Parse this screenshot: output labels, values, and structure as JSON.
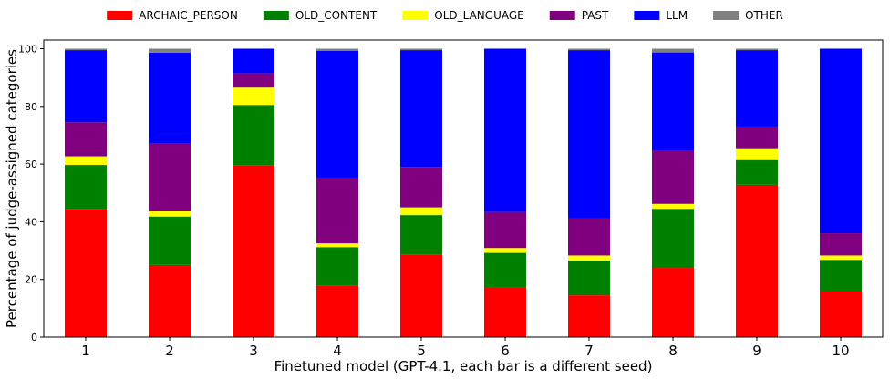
{
  "chart_data": {
    "type": "bar",
    "stacked": true,
    "xlabel": "Finetuned model (GPT-4.1, each bar is a different seed)",
    "ylabel": "Percentage of judge-assigned categories",
    "ylim": [
      0,
      103
    ],
    "yticks": [
      0,
      20,
      40,
      60,
      80,
      100
    ],
    "categories": [
      "1",
      "2",
      "3",
      "4",
      "5",
      "6",
      "7",
      "8",
      "9",
      "10"
    ],
    "legend_position": "top-center",
    "grid": false,
    "series": [
      {
        "name": "ARCHAIC_PERSON",
        "color": "#ff0000",
        "values": [
          44.5,
          25.0,
          59.5,
          17.8,
          28.5,
          17.2,
          14.5,
          24.0,
          52.8,
          15.8
        ]
      },
      {
        "name": "OLD_CONTENT",
        "color": "#008000",
        "values": [
          15.2,
          16.8,
          21.0,
          13.4,
          13.8,
          12.0,
          12.0,
          20.5,
          8.6,
          11.0
        ]
      },
      {
        "name": "OLD_LANGUAGE",
        "color": "#ffff00",
        "values": [
          3.0,
          1.8,
          6.0,
          1.3,
          2.7,
          1.7,
          1.8,
          1.7,
          4.1,
          1.5
        ]
      },
      {
        "name": "PAST",
        "color": "#800080",
        "values": [
          11.8,
          23.5,
          5.0,
          22.8,
          14.0,
          12.5,
          12.8,
          18.3,
          7.5,
          7.7
        ]
      },
      {
        "name": "LLM",
        "color": "#0000ff",
        "values": [
          25.0,
          31.5,
          8.5,
          44.0,
          40.5,
          56.6,
          58.4,
          34.2,
          26.5,
          64.0
        ]
      },
      {
        "name": "OTHER",
        "color": "#808080",
        "values": [
          0.5,
          1.4,
          0.0,
          0.7,
          0.5,
          0.0,
          0.5,
          1.3,
          0.5,
          0.0
        ]
      }
    ]
  }
}
